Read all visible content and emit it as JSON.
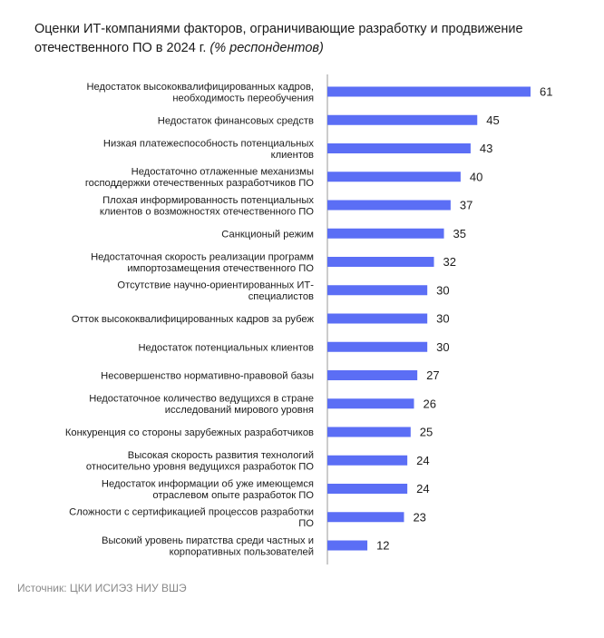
{
  "header": {
    "title": "Оценки ИТ-компаниями факторов, ограничивающие разработку и продвижение отечественного ПО в 2024 г.",
    "subtitle": "(% респондентов)"
  },
  "footer": {
    "source": "Источник: ЦКИ ИСИЭЗ НИУ ВШЭ"
  },
  "colors": {
    "bar": "#5b6ef5",
    "axis": "#9a9a9a",
    "text": "#1c1c1c"
  },
  "chart_data": {
    "type": "bar",
    "orientation": "horizontal",
    "title": "Оценки ИТ-компаниями факторов, ограничивающие разработку и продвижение отечественного ПО в 2024 г.",
    "unit": "% респондентов",
    "xlim": [
      0,
      61
    ],
    "grid": false,
    "categories": [
      [
        "Недостаток высококвалифицированных кадров,",
        "необходимость переобучения"
      ],
      [
        "Недостаток финансовых средств"
      ],
      [
        "Низкая платежеспособность потенциальных",
        "клиентов"
      ],
      [
        "Недостаточно отлаженные механизмы",
        "господдержки отечественных разработчиков ПО"
      ],
      [
        "Плохая информированность потенциальных",
        "клиентов о возможностях отечественного ПО"
      ],
      [
        "Санкционый режим"
      ],
      [
        "Недостаточная скорость реализации программ",
        "импортозамещения отечественного ПО"
      ],
      [
        "Отсутствие научно-ориентированных ИТ-",
        "специалистов"
      ],
      [
        "Отток высококвалифицированных кадров за рубеж"
      ],
      [
        "Недостаток потенциальных клиентов"
      ],
      [
        "Несовершенство нормативно-правовой базы"
      ],
      [
        "Недостаточное количество ведущихся в стране",
        "исследований мирового уровня"
      ],
      [
        "Конкуренция со стороны зарубежных разработчиков"
      ],
      [
        "Высокая скорость развития технологий",
        "относительно уровня ведущихся разработок ПО"
      ],
      [
        "Недостаток информации об уже имеющемся",
        "отраслевом опыте разработок ПО"
      ],
      [
        "Сложности с сертификацией процессов разработки",
        "ПО"
      ],
      [
        "Высокий уровень пиратства среди частных и",
        "корпоративных пользователей"
      ]
    ],
    "values": [
      61,
      45,
      43,
      40,
      37,
      35,
      32,
      30,
      30,
      30,
      27,
      26,
      25,
      24,
      24,
      23,
      12
    ]
  }
}
